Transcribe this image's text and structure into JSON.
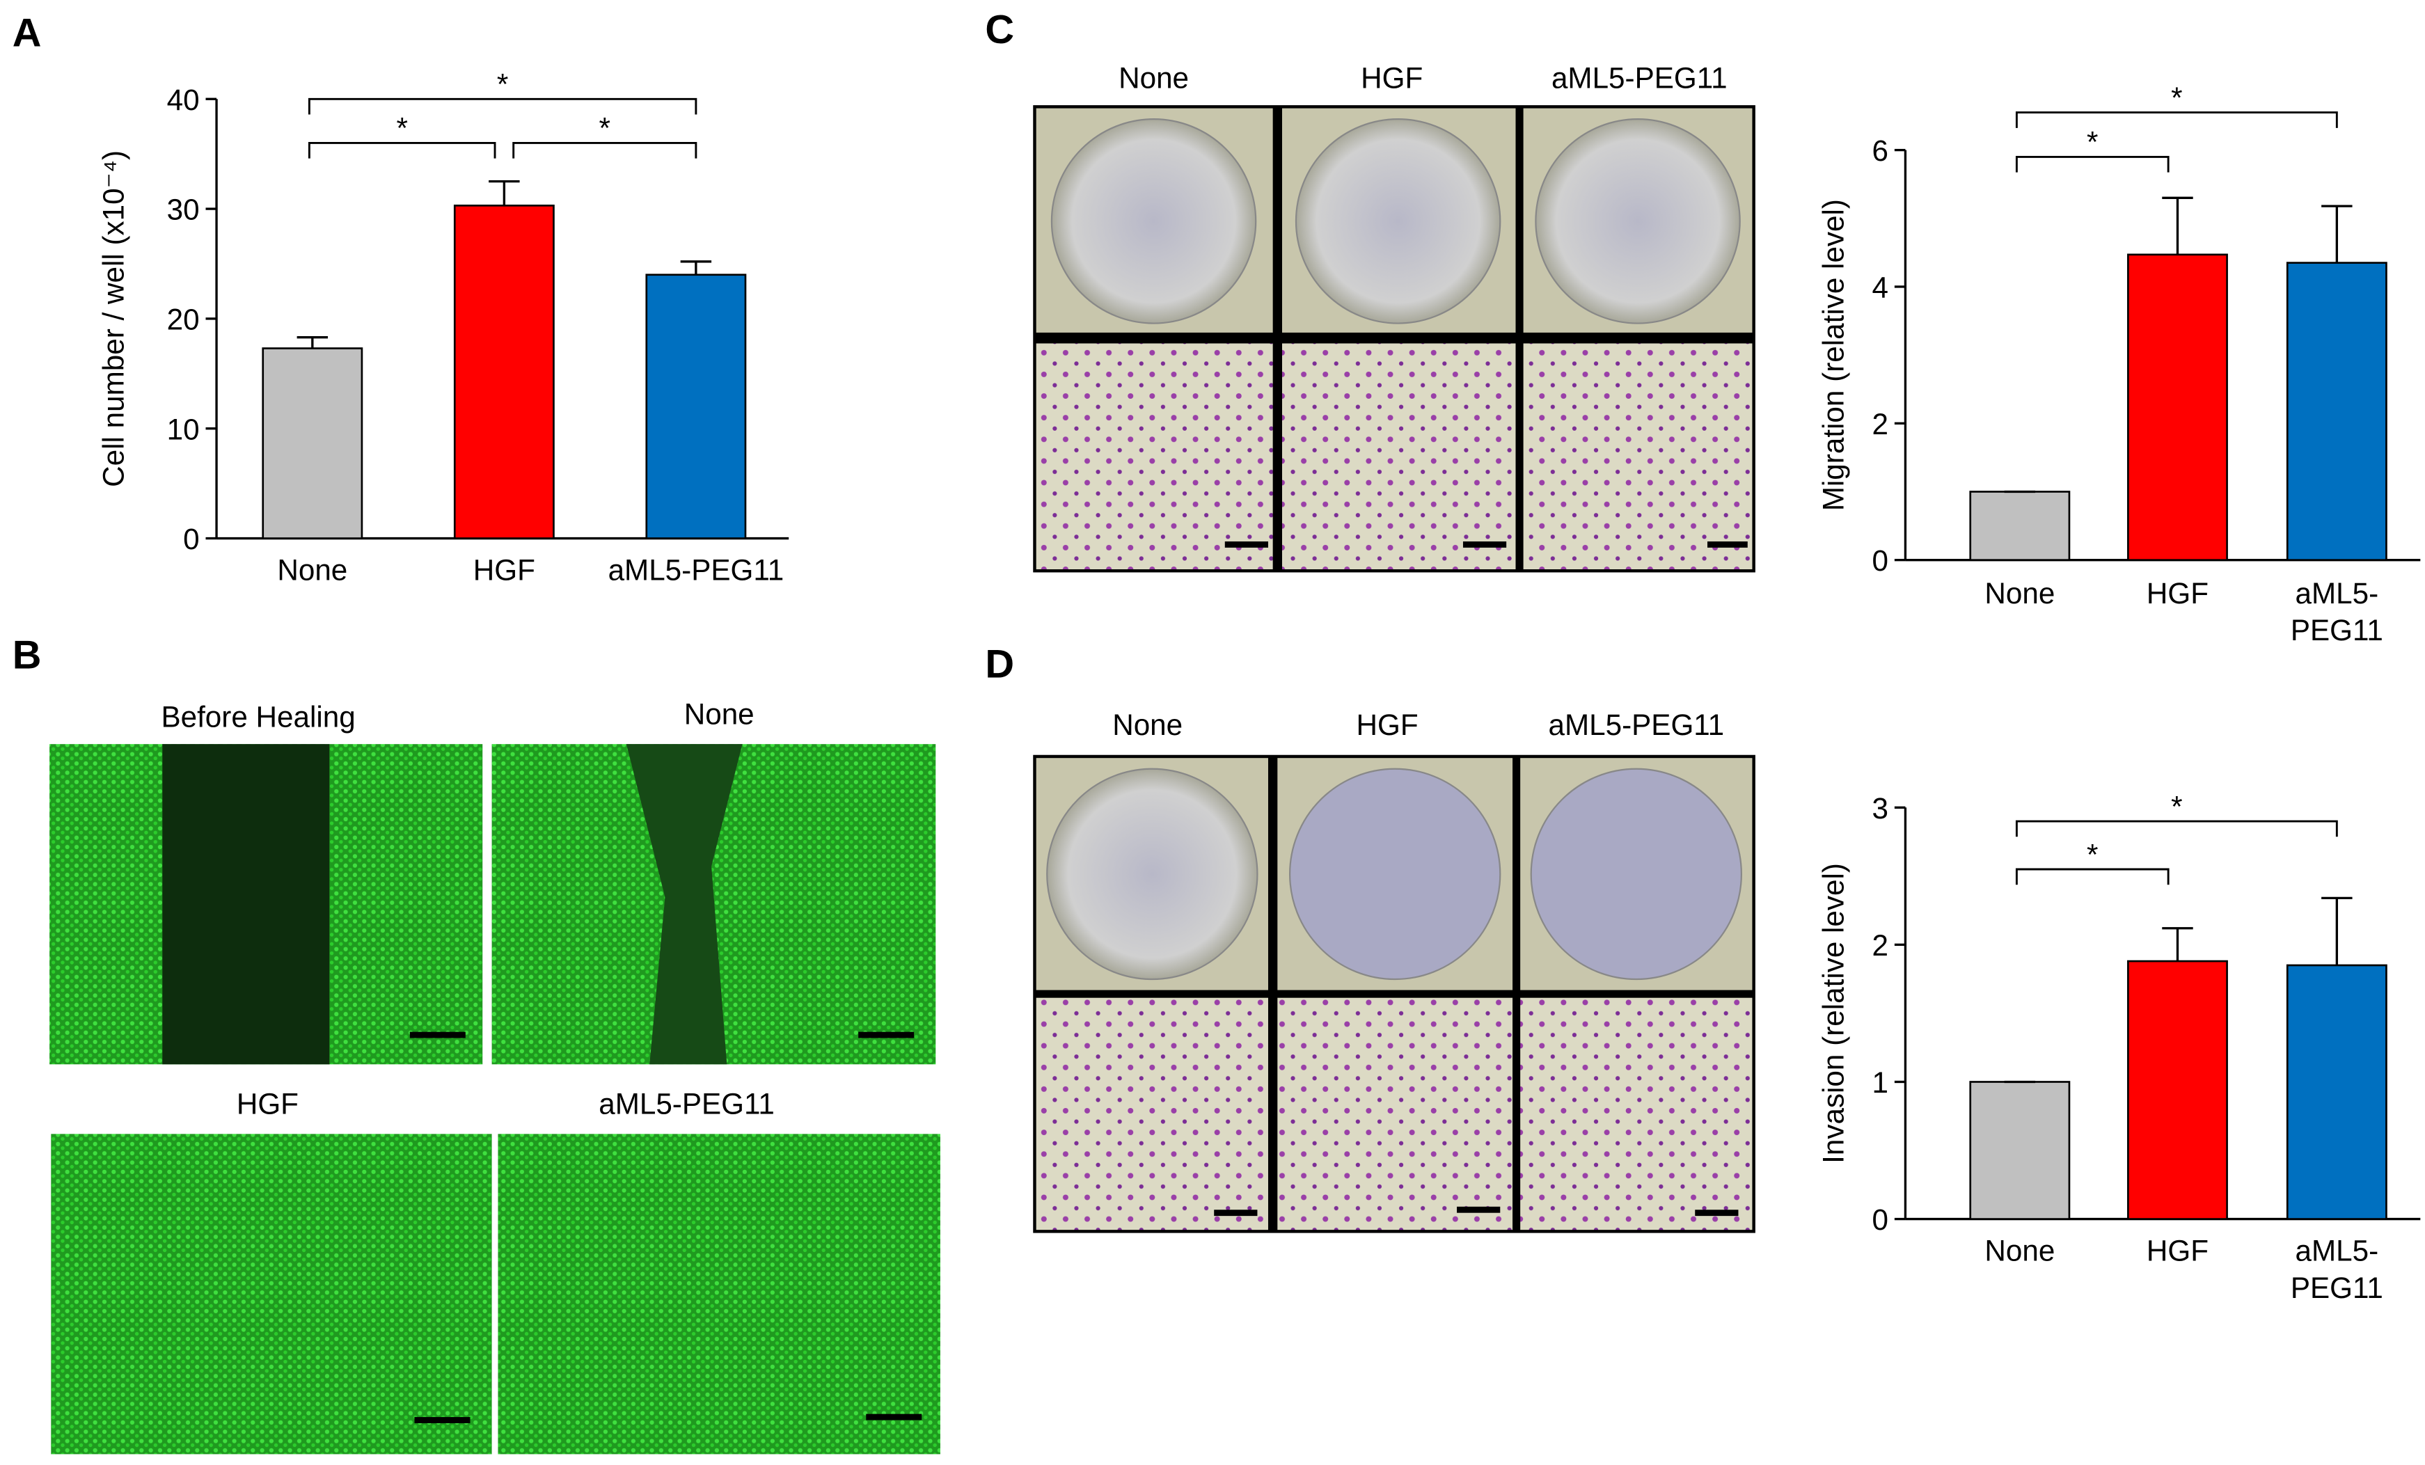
{
  "panel_labels": [
    "A",
    "B",
    "C",
    "D"
  ],
  "wound_healing_labels": [
    "Before Healing",
    "None",
    "HGF",
    "aML5-PEG11"
  ],
  "migration_image_labels": [
    "None",
    "HGF",
    "aML5-PEG11"
  ],
  "invasion_image_labels": [
    "None",
    "HGF",
    "aML5-PEG11"
  ],
  "chart_data": [
    {
      "type": "bar",
      "y_label": "Cell number / well (x10⁻⁴)",
      "categories": [
        "None",
        "HGF",
        "aML5-PEG11"
      ],
      "values": [
        17.3,
        30.3,
        24.0
      ],
      "errors": [
        1.0,
        2.2,
        1.2
      ],
      "colors": [
        "#c0c0c0",
        "#ff0000",
        "#0070c0"
      ],
      "ylim": [
        0,
        40
      ],
      "yticks": [
        0,
        10,
        20,
        30,
        40
      ],
      "significance": [
        {
          "from": 0,
          "to": 1,
          "y": 36,
          "label": "*"
        },
        {
          "from": 1,
          "to": 2,
          "y": 36,
          "label": "*"
        },
        {
          "from": 0,
          "to": 2,
          "y": 40,
          "label": "*"
        }
      ]
    },
    {
      "type": "bar",
      "y_label": "Migration (relative level)",
      "categories": [
        "None",
        "HGF",
        [
          "aML5-",
          "PEG11"
        ]
      ],
      "values": [
        1.0,
        4.47,
        4.35
      ],
      "errors": [
        0,
        0.83,
        0.83
      ],
      "colors": [
        "#c0c0c0",
        "#ff0000",
        "#0070c0"
      ],
      "ylim": [
        0,
        6
      ],
      "yticks": [
        0,
        2,
        4,
        6
      ],
      "significance": [
        {
          "from": 0,
          "to": 1,
          "y": 5.9,
          "label": "*"
        },
        {
          "from": 0,
          "to": 2,
          "y": 6.55,
          "label": "*"
        }
      ]
    },
    {
      "type": "bar",
      "y_label": "Invasion (relative level)",
      "categories": [
        "None",
        "HGF",
        [
          "aML5-",
          "PEG11"
        ]
      ],
      "values": [
        1.0,
        1.88,
        1.85
      ],
      "errors": [
        0,
        0.24,
        0.49
      ],
      "colors": [
        "#c0c0c0",
        "#ff0000",
        "#0070c0"
      ],
      "ylim": [
        0,
        3
      ],
      "yticks": [
        0,
        1,
        2,
        3
      ],
      "significance": [
        {
          "from": 0,
          "to": 1,
          "y": 2.55,
          "label": "*"
        },
        {
          "from": 0,
          "to": 2,
          "y": 2.9,
          "label": "*"
        }
      ]
    }
  ]
}
